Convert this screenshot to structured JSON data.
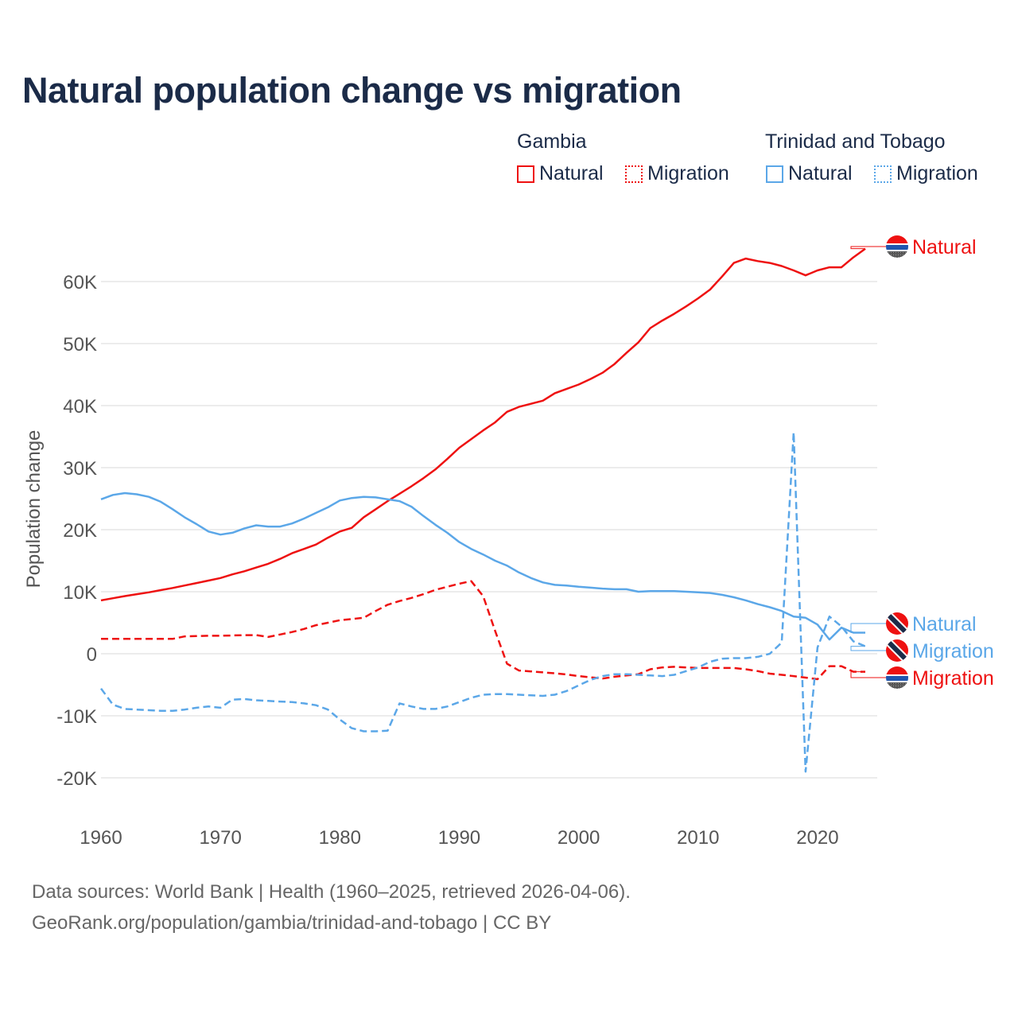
{
  "title": "Natural population change vs migration",
  "legend": {
    "groups": [
      {
        "name": "Gambia",
        "items": [
          "Natural",
          "Migration"
        ],
        "color": "#ee1111"
      },
      {
        "name": "Trinidad and Tobago",
        "items": [
          "Natural",
          "Migration"
        ],
        "color": "#5ba7e8"
      }
    ]
  },
  "footer": {
    "line1": "Data sources: World Bank | Health (1960–2025, retrieved 2026-04-06).",
    "line2": "GeoRank.org/population/gambia/trinidad-and-tobago | CC BY"
  },
  "chart_data": {
    "type": "line",
    "title": "Natural population change vs migration",
    "xlabel": "",
    "ylabel": "Population change",
    "xlim": [
      1960,
      2025
    ],
    "ylim": [
      -25000,
      70000
    ],
    "xticks": [
      1960,
      1970,
      1980,
      1990,
      2000,
      2010,
      2020
    ],
    "xtick_labels": [
      "1960",
      "1970",
      "1980",
      "1990",
      "2000",
      "2010",
      "2020"
    ],
    "yticks": [
      -20000,
      -10000,
      0,
      10000,
      20000,
      30000,
      40000,
      50000,
      60000
    ],
    "ytick_labels": [
      "-20K",
      "-10K",
      "0",
      "10K",
      "20K",
      "30K",
      "40K",
      "50K",
      "60K"
    ],
    "grid": true,
    "start_year": 1960,
    "series": [
      {
        "name": "Natural",
        "country": "Gambia",
        "color": "#ee1111",
        "dash": false,
        "end_label": "Natural",
        "values": [
          8600,
          8950,
          9300,
          9600,
          9900,
          10250,
          10600,
          11000,
          11400,
          11800,
          12200,
          12800,
          13300,
          13900,
          14500,
          15300,
          16200,
          16900,
          17600,
          18700,
          19700,
          20300,
          22000,
          23300,
          24600,
          25800,
          27000,
          28300,
          29700,
          31400,
          33200,
          34600,
          36000,
          37300,
          39000,
          39800,
          40300,
          40800,
          42000,
          42700,
          43400,
          44300,
          45300,
          46700,
          48500,
          50200,
          52500,
          53700,
          54800,
          56000,
          57300,
          58700,
          60800,
          63000,
          63700,
          63300,
          63000,
          62500,
          61800,
          61000,
          61800,
          62300,
          62300,
          63900,
          65300
        ]
      },
      {
        "name": "Migration",
        "country": "Gambia",
        "color": "#ee1111",
        "dash": true,
        "end_label": "Migration",
        "values": [
          2400,
          2400,
          2400,
          2400,
          2400,
          2400,
          2400,
          2800,
          2850,
          2900,
          2900,
          2950,
          3000,
          3000,
          2700,
          3100,
          3500,
          4000,
          4600,
          5000,
          5400,
          5600,
          5800,
          6900,
          7900,
          8500,
          9000,
          9600,
          10300,
          10800,
          11300,
          11700,
          9300,
          3700,
          -1600,
          -2700,
          -2850,
          -3000,
          -3150,
          -3350,
          -3600,
          -3800,
          -4000,
          -3700,
          -3500,
          -3300,
          -2500,
          -2200,
          -2100,
          -2200,
          -2300,
          -2300,
          -2300,
          -2300,
          -2500,
          -2800,
          -3200,
          -3400,
          -3600,
          -3850,
          -4100,
          -2000,
          -2000,
          -2900,
          -2900
        ]
      },
      {
        "name": "Natural",
        "country": "Trinidad and Tobago",
        "color": "#5ba7e8",
        "dash": false,
        "end_label": "Natural",
        "values": [
          24900,
          25600,
          25900,
          25700,
          25300,
          24500,
          23300,
          22000,
          20900,
          19700,
          19200,
          19500,
          20200,
          20700,
          20500,
          20500,
          21000,
          21800,
          22700,
          23600,
          24700,
          25100,
          25300,
          25200,
          24900,
          24600,
          23700,
          22200,
          20800,
          19500,
          18000,
          16900,
          16000,
          15000,
          14200,
          13100,
          12200,
          11500,
          11100,
          11000,
          10800,
          10650,
          10500,
          10400,
          10400,
          10000,
          10100,
          10100,
          10100,
          10000,
          9900,
          9800,
          9500,
          9100,
          8600,
          8000,
          7500,
          6900,
          6000,
          5800,
          4700,
          2300,
          4200,
          3400,
          3400
        ]
      },
      {
        "name": "Migration",
        "country": "Trinidad and Tobago",
        "color": "#5ba7e8",
        "dash": true,
        "end_label": "Migration",
        "values": [
          -5600,
          -8200,
          -8900,
          -9000,
          -9100,
          -9200,
          -9200,
          -9000,
          -8700,
          -8500,
          -8700,
          -7400,
          -7300,
          -7500,
          -7600,
          -7700,
          -7800,
          -8000,
          -8300,
          -9000,
          -10600,
          -12000,
          -12500,
          -12500,
          -12400,
          -8000,
          -8500,
          -8900,
          -8900,
          -8500,
          -7800,
          -7100,
          -6600,
          -6500,
          -6500,
          -6600,
          -6700,
          -6800,
          -6600,
          -6000,
          -5100,
          -4200,
          -3600,
          -3300,
          -3300,
          -3400,
          -3500,
          -3600,
          -3400,
          -2800,
          -2200,
          -1300,
          -800,
          -700,
          -700,
          -500,
          0,
          1800,
          35700,
          -19000,
          1000,
          6000,
          4400,
          2000,
          1200
        ]
      }
    ]
  }
}
